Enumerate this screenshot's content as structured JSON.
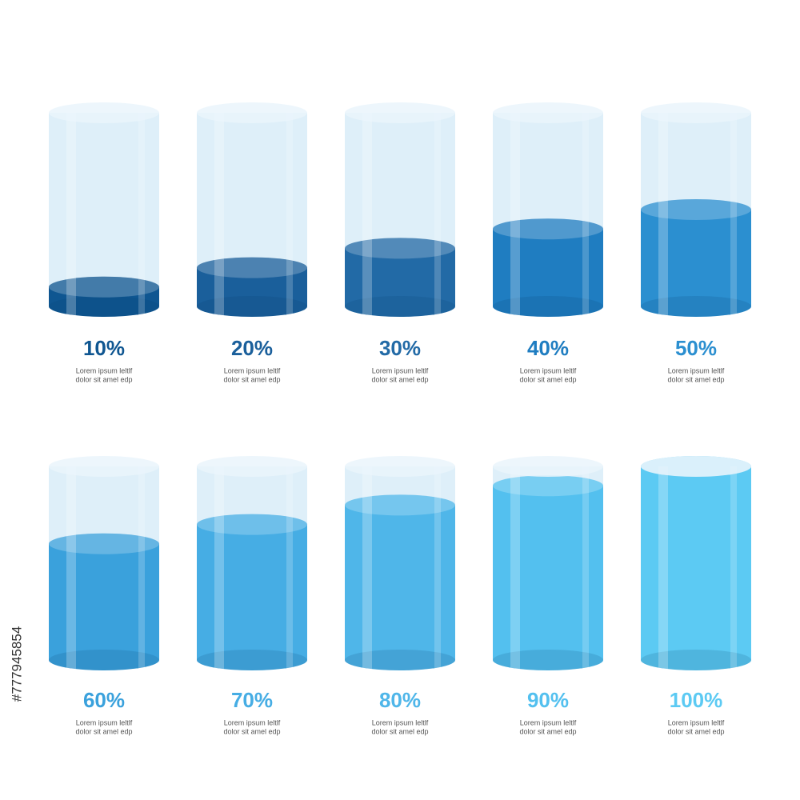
{
  "chart_data": {
    "type": "cylinder",
    "values": [
      10,
      20,
      30,
      40,
      50,
      60,
      70,
      80,
      90,
      100
    ],
    "value_labels": [
      "10%",
      "20%",
      "30%",
      "40%",
      "50%",
      "60%",
      "70%",
      "80%",
      "90%",
      "100%"
    ],
    "ylim": [
      0,
      100
    ],
    "colors": [
      "#0f5691",
      "#1a5f9b",
      "#226aa6",
      "#1f7dc1",
      "#2b8fd0",
      "#3aa1dc",
      "#46ade4",
      "#4fb6e9",
      "#53c0ef",
      "#5ccaf3"
    ],
    "captions": [
      [
        "Lorem ipsum leltlf",
        "dolor sit amel edp"
      ],
      [
        "Lorem ipsum leltlf",
        "dolor sit amel edp"
      ],
      [
        "Lorem ipsum leltlf",
        "dolor sit amel edp"
      ],
      [
        "Lorem ipsum leltlf",
        "dolor sit amel edp"
      ],
      [
        "Lorem ipsum leltlf",
        "dolor sit amel edp"
      ],
      [
        "Lorem ipsum leltlf",
        "dolor sit amel edp"
      ],
      [
        "Lorem ipsum leltlf",
        "dolor sit amel edp"
      ],
      [
        "Lorem ipsum leltlf",
        "dolor sit amel edp"
      ],
      [
        "Lorem ipsum leltlf",
        "dolor sit amel edp"
      ],
      [
        "Lorem ipsum leltlf",
        "dolor sit amel edp"
      ]
    ]
  },
  "side_text": "#777945854"
}
